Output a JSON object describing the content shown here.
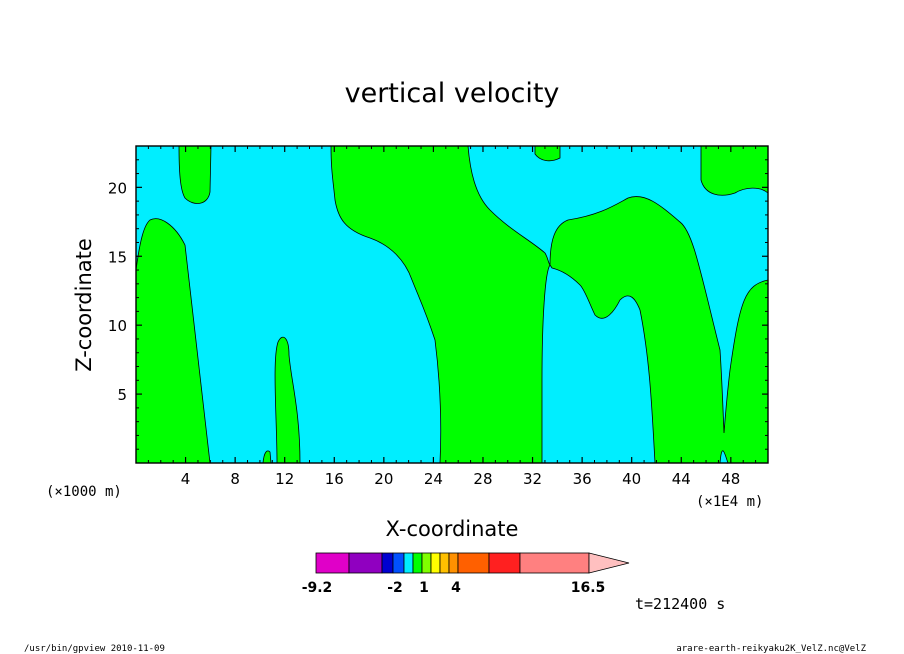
{
  "chart_data": {
    "type": "heatmap",
    "title": "vertical velocity",
    "xlabel": "X-coordinate",
    "ylabel": "Z-coordinate",
    "x_unit_left": "(×1000 m)",
    "x_unit_right": "(×1E4 m)",
    "xlim": [
      0,
      51
    ],
    "ylim": [
      0,
      23
    ],
    "xticks": [
      4,
      8,
      12,
      16,
      20,
      24,
      28,
      32,
      36,
      40,
      44,
      48
    ],
    "yticks": [
      5,
      10,
      15,
      20
    ],
    "background_field_color": "#00eeff",
    "contour_fill_color": "#00ff00",
    "colorbar": {
      "colors": [
        "#e000c8",
        "#9000c0",
        "#0000d0",
        "#0050ff",
        "#00eeff",
        "#00ff00",
        "#80ff00",
        "#ffff00",
        "#ffc000",
        "#ff9000",
        "#ff6000",
        "#ff2020",
        "#ff8080",
        "#ffc0c0"
      ],
      "labels": [
        "-9.2",
        "-2",
        "1",
        "4",
        "16.5"
      ]
    },
    "time_label": "t=212400 s",
    "footer_left": "/usr/bin/gpview  2010-11-09",
    "footer_right": "arare-earth-reikyaku2K_VelZ.nc@VelZ"
  }
}
